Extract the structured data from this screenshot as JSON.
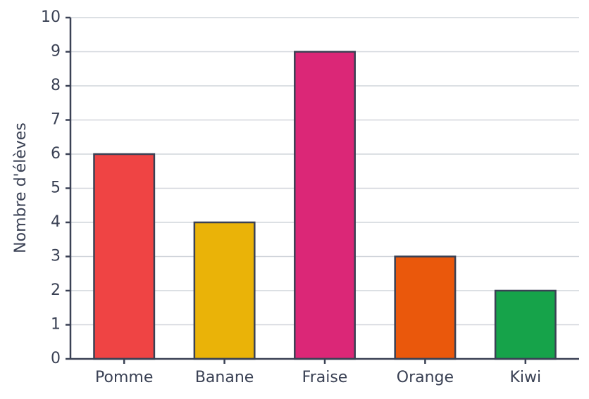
{
  "chart_data": {
    "type": "bar",
    "y_label": "Nombre d'élèves",
    "categories": [
      "Pomme",
      "Banane",
      "Fraise",
      "Orange",
      "Kiwi"
    ],
    "values": [
      6,
      4,
      9,
      3,
      2
    ],
    "colors": [
      "#ef4444",
      "#eab308",
      "#db2777",
      "#ea580c",
      "#16a34a"
    ],
    "ylim": [
      0,
      10
    ],
    "yticks": [
      0,
      1,
      2,
      3,
      4,
      5,
      6,
      7,
      8,
      9,
      10
    ],
    "grid": true
  }
}
